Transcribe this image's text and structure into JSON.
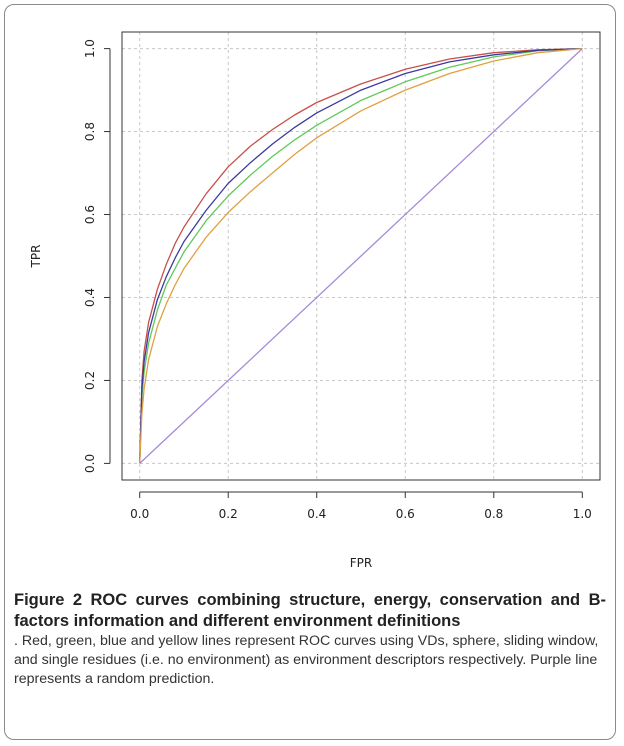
{
  "chart_data": {
    "type": "line",
    "xlabel": "FPR",
    "ylabel": "TPR",
    "xlim": [
      0,
      1
    ],
    "ylim": [
      0,
      1
    ],
    "xticks": [
      "0.0",
      "0.2",
      "0.4",
      "0.6",
      "0.8",
      "1.0"
    ],
    "yticks": [
      "0.0",
      "0.2",
      "0.4",
      "0.6",
      "0.8",
      "1.0"
    ],
    "grid": true,
    "series": [
      {
        "color": "#c8504a",
        "x": [
          0,
          0.005,
          0.01,
          0.02,
          0.04,
          0.06,
          0.08,
          0.1,
          0.15,
          0.2,
          0.25,
          0.3,
          0.35,
          0.4,
          0.5,
          0.6,
          0.7,
          0.8,
          0.9,
          1.0
        ],
        "y": [
          0,
          0.2,
          0.27,
          0.34,
          0.42,
          0.48,
          0.53,
          0.57,
          0.65,
          0.715,
          0.765,
          0.805,
          0.84,
          0.87,
          0.915,
          0.95,
          0.975,
          0.99,
          0.997,
          1.0
        ]
      },
      {
        "color": "#5fc95a",
        "x": [
          0,
          0.005,
          0.01,
          0.02,
          0.04,
          0.06,
          0.08,
          0.1,
          0.15,
          0.2,
          0.25,
          0.3,
          0.35,
          0.4,
          0.5,
          0.6,
          0.7,
          0.8,
          0.9,
          1.0
        ],
        "y": [
          0,
          0.16,
          0.22,
          0.29,
          0.37,
          0.43,
          0.47,
          0.51,
          0.585,
          0.645,
          0.695,
          0.74,
          0.78,
          0.815,
          0.875,
          0.92,
          0.955,
          0.98,
          0.995,
          1.0
        ]
      },
      {
        "color": "#3c3aa0",
        "x": [
          0,
          0.005,
          0.01,
          0.02,
          0.04,
          0.06,
          0.08,
          0.1,
          0.15,
          0.2,
          0.25,
          0.3,
          0.35,
          0.4,
          0.5,
          0.6,
          0.7,
          0.8,
          0.9,
          1.0
        ],
        "y": [
          0,
          0.18,
          0.245,
          0.315,
          0.395,
          0.45,
          0.495,
          0.535,
          0.61,
          0.675,
          0.725,
          0.77,
          0.81,
          0.845,
          0.9,
          0.94,
          0.968,
          0.985,
          0.996,
          1.0
        ]
      },
      {
        "color": "#e0a040",
        "x": [
          0,
          0.005,
          0.01,
          0.02,
          0.04,
          0.06,
          0.08,
          0.1,
          0.15,
          0.2,
          0.25,
          0.3,
          0.35,
          0.4,
          0.5,
          0.6,
          0.7,
          0.8,
          0.9,
          1.0
        ],
        "y": [
          0,
          0.12,
          0.18,
          0.25,
          0.33,
          0.385,
          0.43,
          0.47,
          0.545,
          0.605,
          0.655,
          0.7,
          0.745,
          0.785,
          0.85,
          0.9,
          0.94,
          0.97,
          0.99,
          1.0
        ]
      },
      {
        "color": "#a78ad8",
        "x": [
          0,
          1
        ],
        "y": [
          0,
          1
        ]
      }
    ]
  },
  "caption": {
    "title": "Figure 2 ROC curves combining structure, energy, conservation and B-factors information and different environment definitions",
    "body": ". Red, green, blue and yellow lines represent ROC curves using VDs, sphere, sliding window, and single residues (i.e. no environment) as environment descriptors respectively. Purple line represents a random prediction."
  }
}
